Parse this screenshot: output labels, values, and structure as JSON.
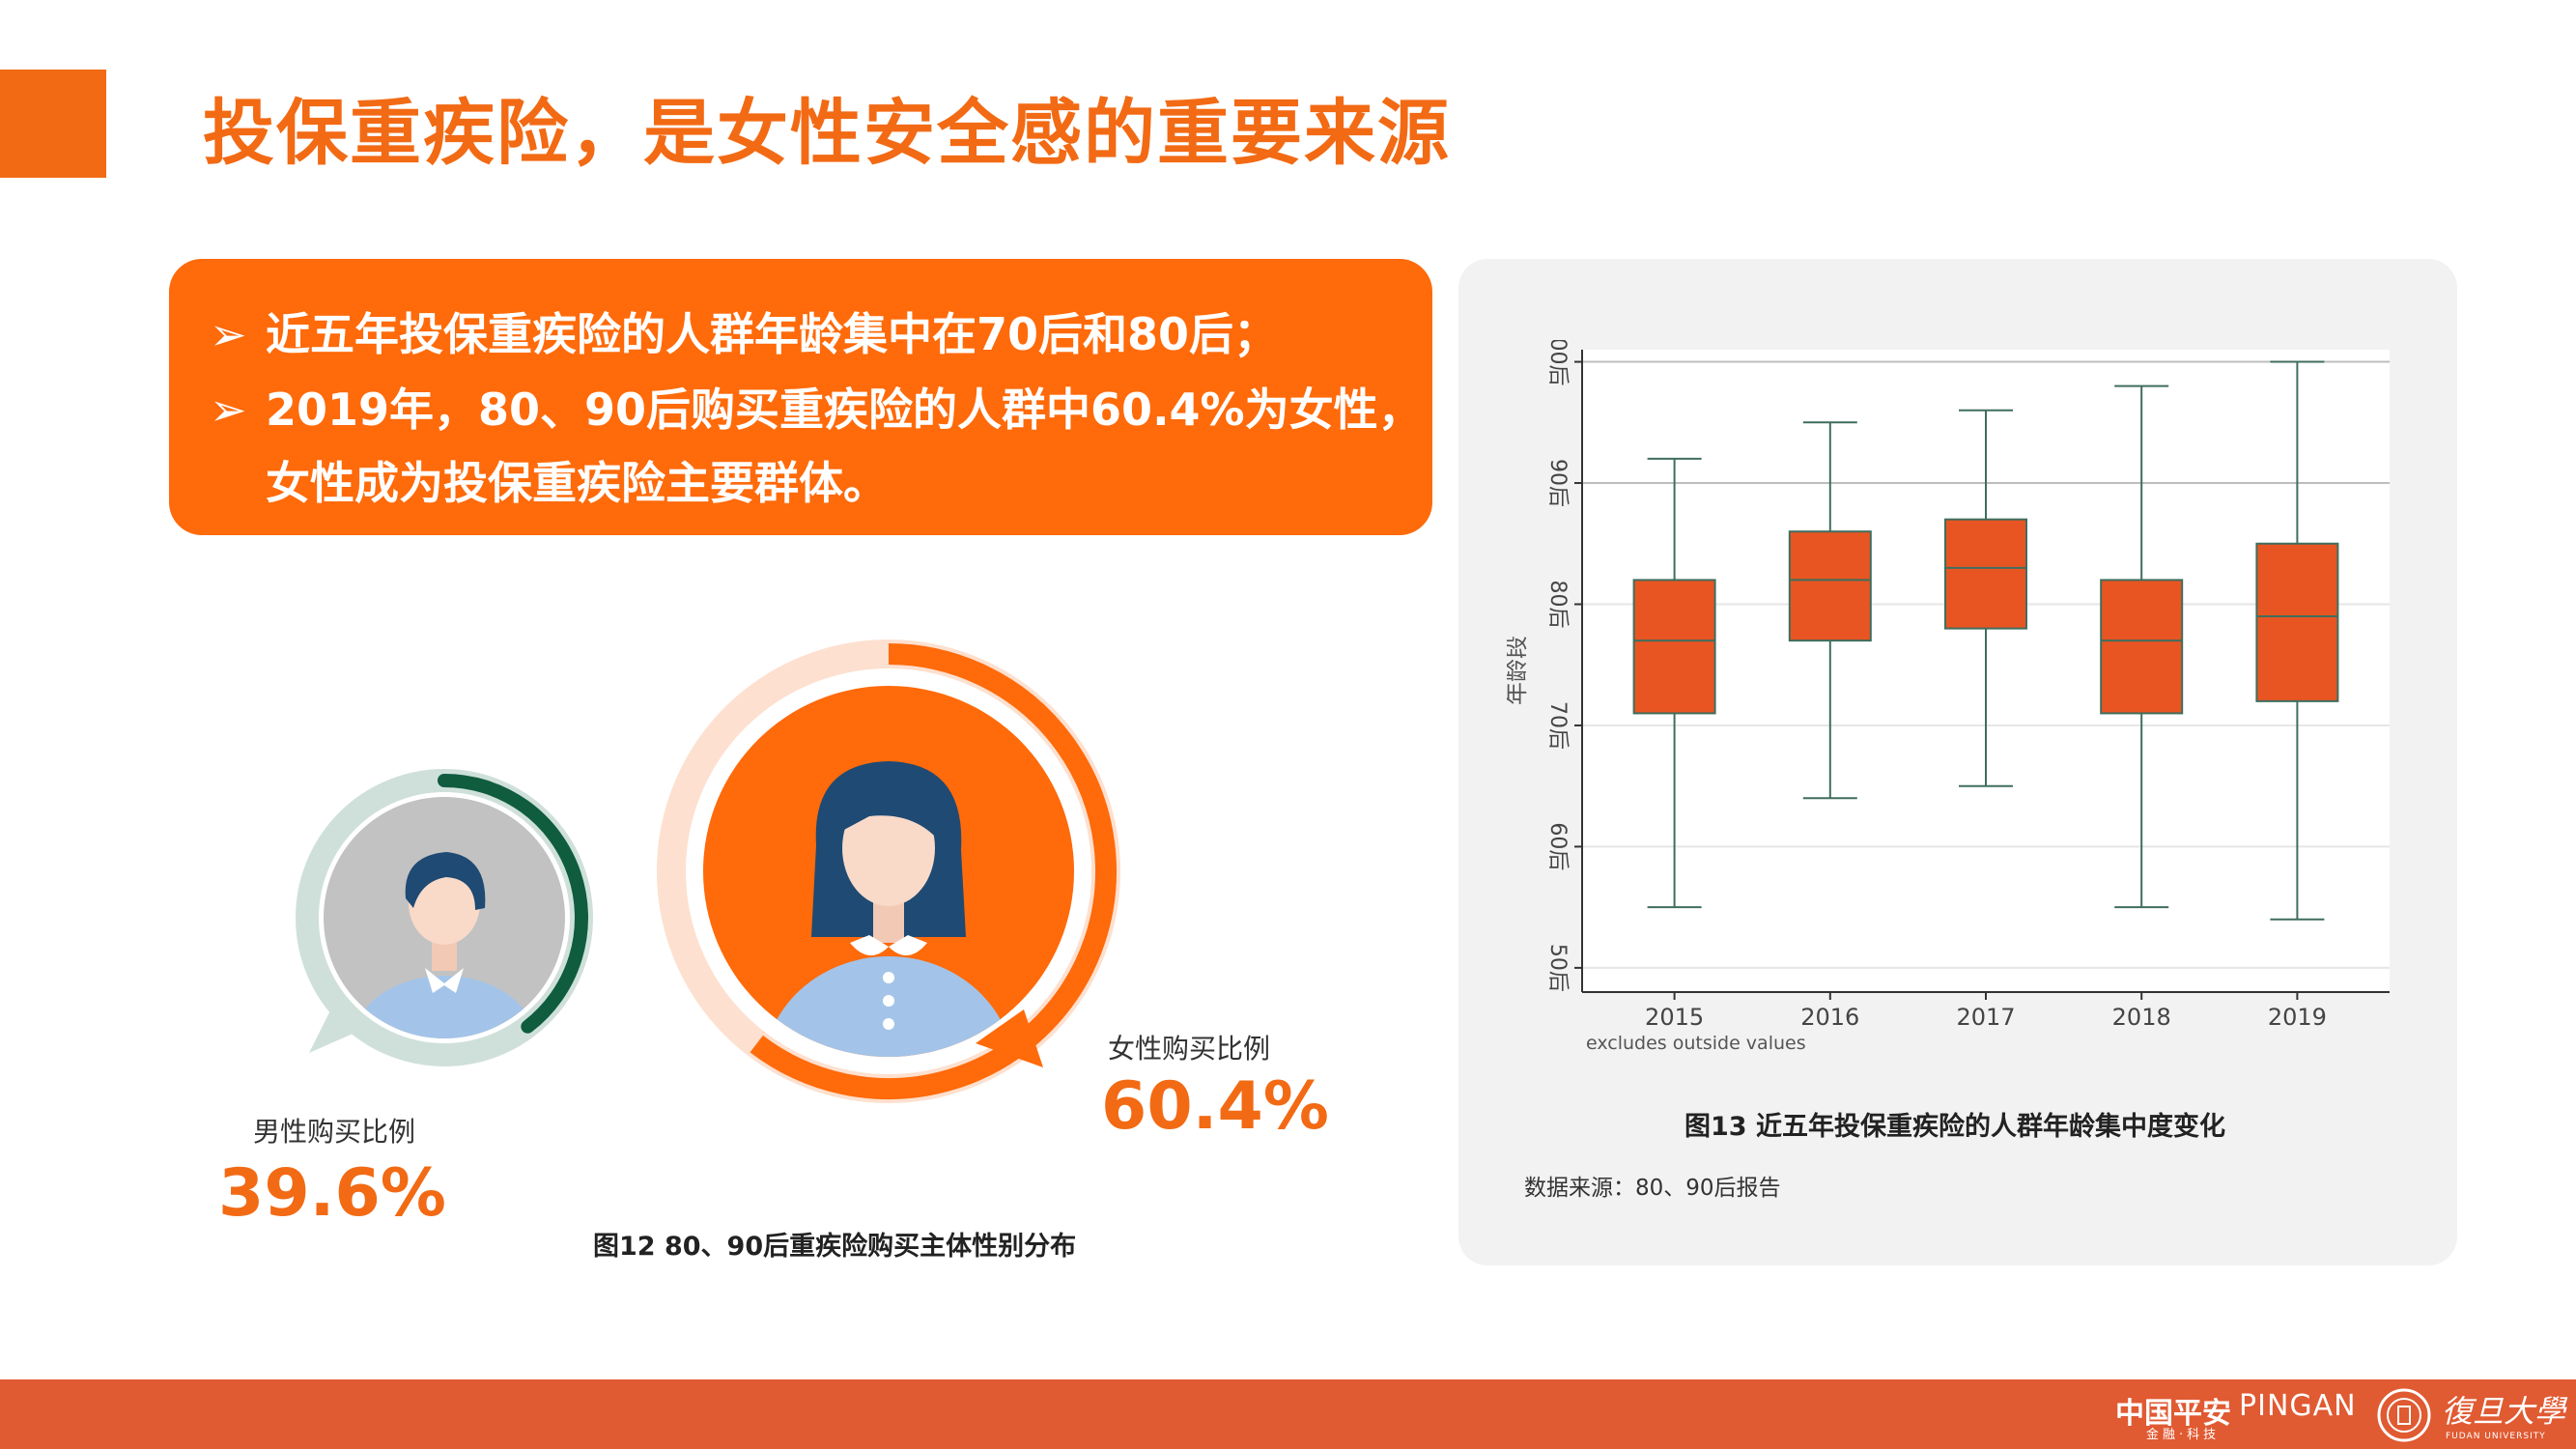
{
  "page": {
    "title": "投保重疾险，是女性安全感的重要来源"
  },
  "bullets": [
    "近五年投保重疾险的人群年龄集中在70后和80后；",
    "2019年，80、90后购买重疾险的人群中60.4%为女性，",
    "女性成为投保重疾险主要群体。"
  ],
  "bullet_marker": "➢",
  "gender": {
    "male_label": "男性购买比例",
    "male_pct": "39.6%",
    "male_value": 0.396,
    "female_label": "女性购买比例",
    "female_pct": "60.4%",
    "female_value": 0.604,
    "caption": "图12 80、90后重疾险购买主体性别分布",
    "colors": {
      "male_ring": "#0f5c3f",
      "male_track": "#cfe0da",
      "female_ring": "#ff6a0a",
      "female_track": "#fde0cf"
    }
  },
  "chart_caption": "图13  近五年投保重疾险的人群年龄集中度变化",
  "chart_source": "数据来源：80、90后报告",
  "chart_data": {
    "type": "box",
    "ylabel": "年龄段",
    "note": "excludes outside values",
    "categories": [
      "2015",
      "2016",
      "2017",
      "2018",
      "2019"
    ],
    "ylim": [
      48,
      101
    ],
    "yticks": [
      50,
      60,
      70,
      80,
      90,
      100
    ],
    "ytick_labels": [
      "50后",
      "60后",
      "70后",
      "80后",
      "90后",
      "00后"
    ],
    "boxes": [
      {
        "min": 55,
        "q1": 71,
        "median": 77,
        "q3": 82,
        "max": 92
      },
      {
        "min": 64,
        "q1": 77,
        "median": 82,
        "q3": 86,
        "max": 95
      },
      {
        "min": 65,
        "q1": 78,
        "median": 83,
        "q3": 87,
        "max": 96
      },
      {
        "min": 55,
        "q1": 71,
        "median": 77,
        "q3": 82,
        "max": 98
      },
      {
        "min": 54,
        "q1": 72,
        "median": 79,
        "q3": 85,
        "max": 100
      }
    ],
    "grid": true,
    "colors": {
      "box": "#e85522",
      "line": "#3f6e5e"
    }
  },
  "footer": {
    "pingan_cn": "中国平安",
    "pingan_sub": "金融·科技",
    "pingan_en": "PINGAN",
    "fudan_cn": "復旦大學",
    "fudan_en": "FUDAN UNIVERSITY",
    "color": "#e05a32"
  }
}
